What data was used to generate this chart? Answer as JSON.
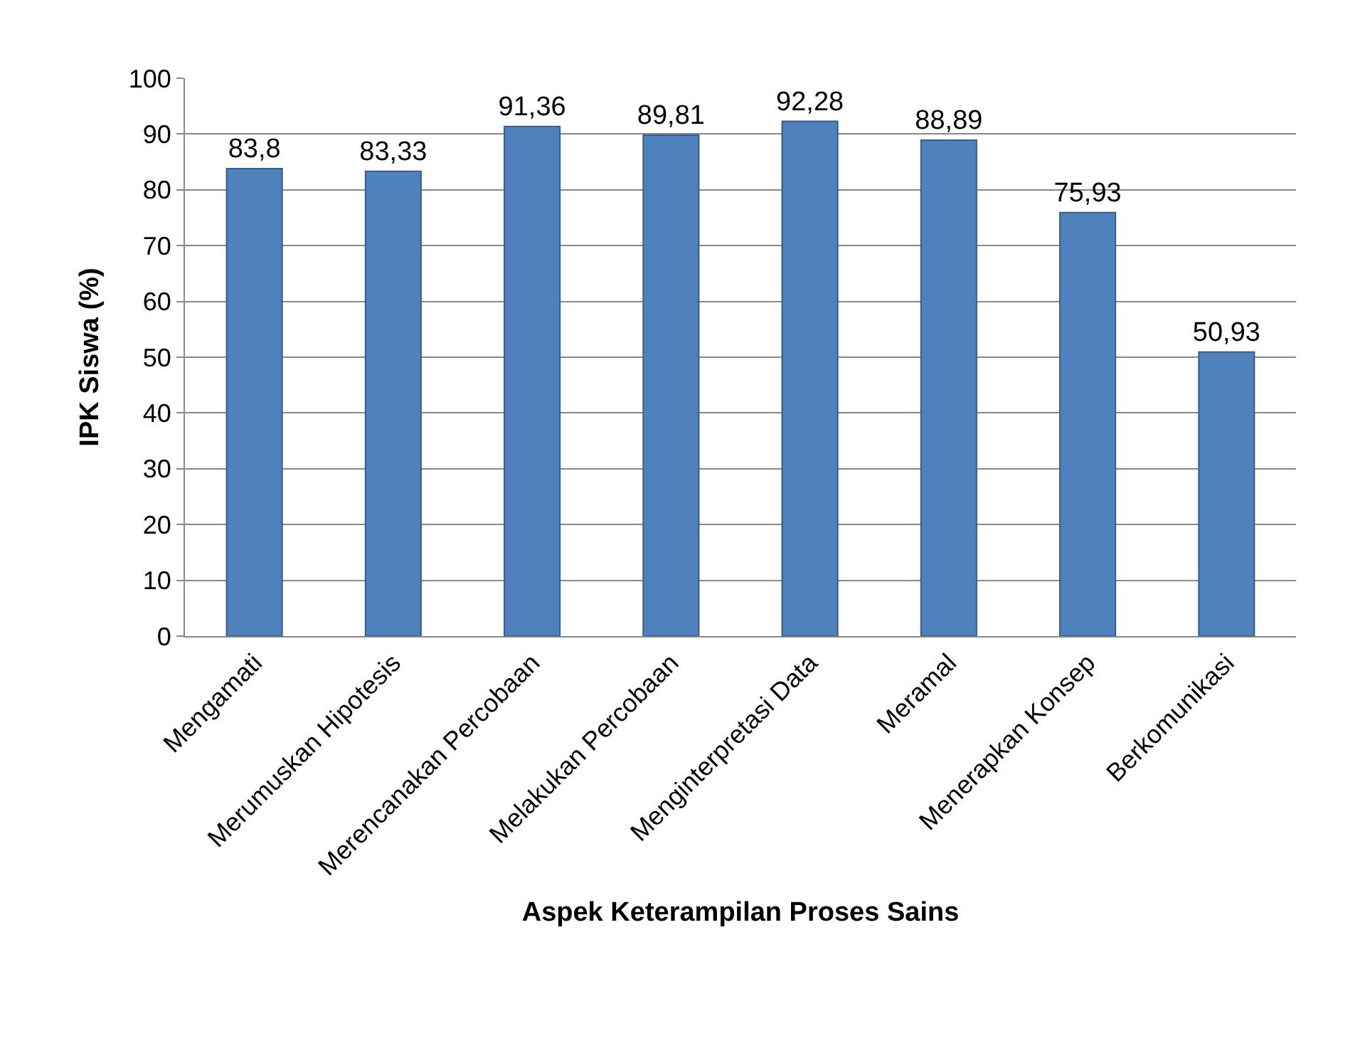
{
  "chart_data": {
    "type": "bar",
    "xlabel": "Aspek Keterampilan Proses Sains",
    "ylabel": "IPK Siswa (%)",
    "categories": [
      "Mengamati",
      "Merumuskan Hipotesis",
      "Merencanakan Percobaan",
      "Melakukan Percobaan",
      "Menginterpretasi Data",
      "Meramal",
      "Menerapkan Konsep",
      "Berkomunikasi"
    ],
    "values": [
      83.8,
      83.33,
      91.36,
      89.81,
      92.28,
      88.89,
      75.93,
      50.93
    ],
    "value_labels": [
      "83,8",
      "83,33",
      "91,36",
      "89,81",
      "92,28",
      "88,89",
      "75,93",
      "50,93"
    ],
    "color": "#4f81bd",
    "ylim": [
      0,
      100
    ],
    "yticks": [
      0,
      10,
      20,
      30,
      40,
      50,
      60,
      70,
      80,
      90,
      100
    ],
    "grid": "y"
  }
}
